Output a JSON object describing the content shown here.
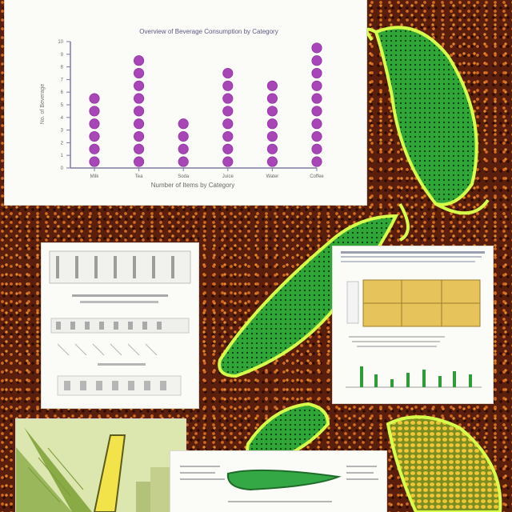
{
  "chart_data": {
    "type": "scatter",
    "title": "Overview of Beverage Consumption by Category",
    "xlabel": "Number of Items by Category",
    "ylabel": "No. of Beverage",
    "categories": [
      "Milk",
      "Tea",
      "Soda",
      "Juice",
      "Water",
      "Coffee"
    ],
    "values": [
      6,
      9,
      4,
      8,
      7,
      10
    ],
    "yticks": [
      0,
      1,
      2,
      3,
      4,
      5,
      6,
      7,
      8,
      9,
      10
    ],
    "ylim": [
      0,
      10
    ],
    "grid": false,
    "marker_color": "#a845b7"
  },
  "background_color": "#5a1f0c",
  "accent_green": "#27a632",
  "accent_yellow": "#e7c95c"
}
